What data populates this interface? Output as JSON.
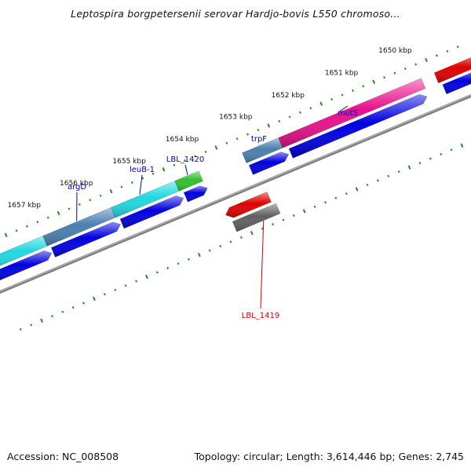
{
  "title": "Leptospira borgpetersenii serovar Hardjo-bovis L550 chromoso...",
  "footer": {
    "accession": "Accession: NC_008508",
    "summary": "Topology: circular; Length: 3,614,446 bp; Genes: 2,745"
  },
  "kbp_labels": [
    "1657 kbp",
    "1656 kbp",
    "1655 kbp",
    "1654 kbp",
    "1653 kbp",
    "1652 kbp",
    "1651 kbp",
    "1650 kbp"
  ],
  "gene_labels": [
    {
      "text": "argD",
      "color": "#0000c0"
    },
    {
      "text": "leuB-1",
      "color": "#0000c0"
    },
    {
      "text": "LBL_1420",
      "color": "#0000c0"
    },
    {
      "text": "trpF",
      "color": "#0000c0"
    },
    {
      "text": "mutS",
      "color": "#0000c0"
    },
    {
      "text": "LBL_1419",
      "color": "#d00000"
    }
  ],
  "colors": {
    "backbone": "#808080",
    "ticks": "#228b22",
    "cds_blue": "#0000e0",
    "feature_steel": "#4a7fb0",
    "feature_cyan": "#20d8e0",
    "feature_green": "#30c030",
    "feature_pink": "#e8108c",
    "feature_red": "#e00000",
    "feature_gray": "#606060"
  }
}
